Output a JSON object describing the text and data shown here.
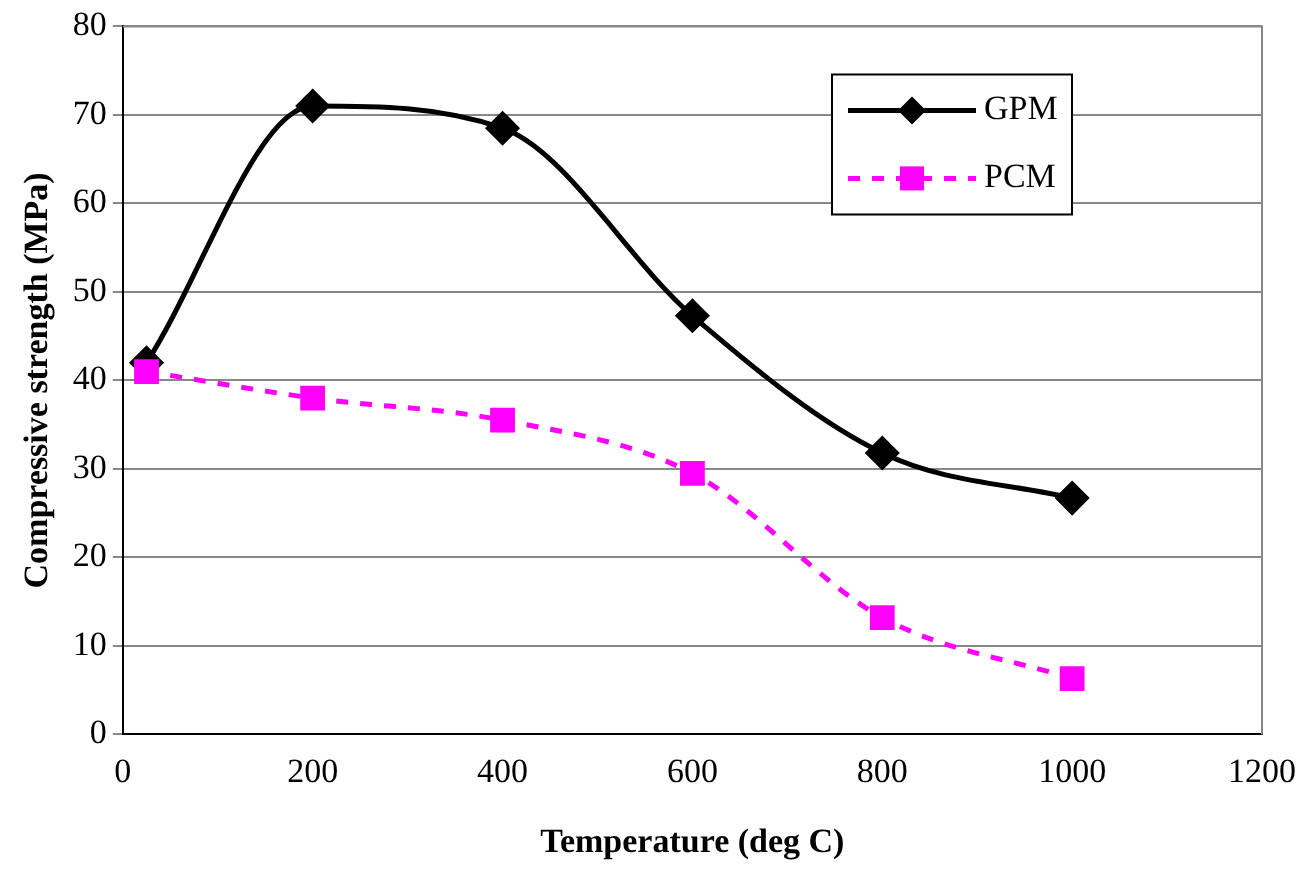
{
  "chart_data": {
    "type": "line",
    "xlabel": "Temperature (deg C)",
    "ylabel": "Compressive strength (MPa)",
    "x": [
      25,
      200,
      400,
      600,
      800,
      1000
    ],
    "series": [
      {
        "name": "GPM",
        "color": "#000000",
        "values": [
          42,
          71,
          68.5,
          47.3,
          31.8,
          26.7
        ],
        "marker": "diamond",
        "line_style": "solid"
      },
      {
        "name": "PCM",
        "color": "#ff00ff",
        "values": [
          41,
          38,
          35.5,
          29.5,
          13.2,
          6.3
        ],
        "marker": "square",
        "line_style": "dashed"
      }
    ],
    "xlim": [
      0,
      1200
    ],
    "xticks": [
      0,
      200,
      400,
      600,
      800,
      1000,
      1200
    ],
    "ylim": [
      0,
      80
    ],
    "yticks": [
      0,
      10,
      20,
      30,
      40,
      50,
      60,
      70,
      80
    ],
    "grid": "y",
    "legend": "top right"
  }
}
